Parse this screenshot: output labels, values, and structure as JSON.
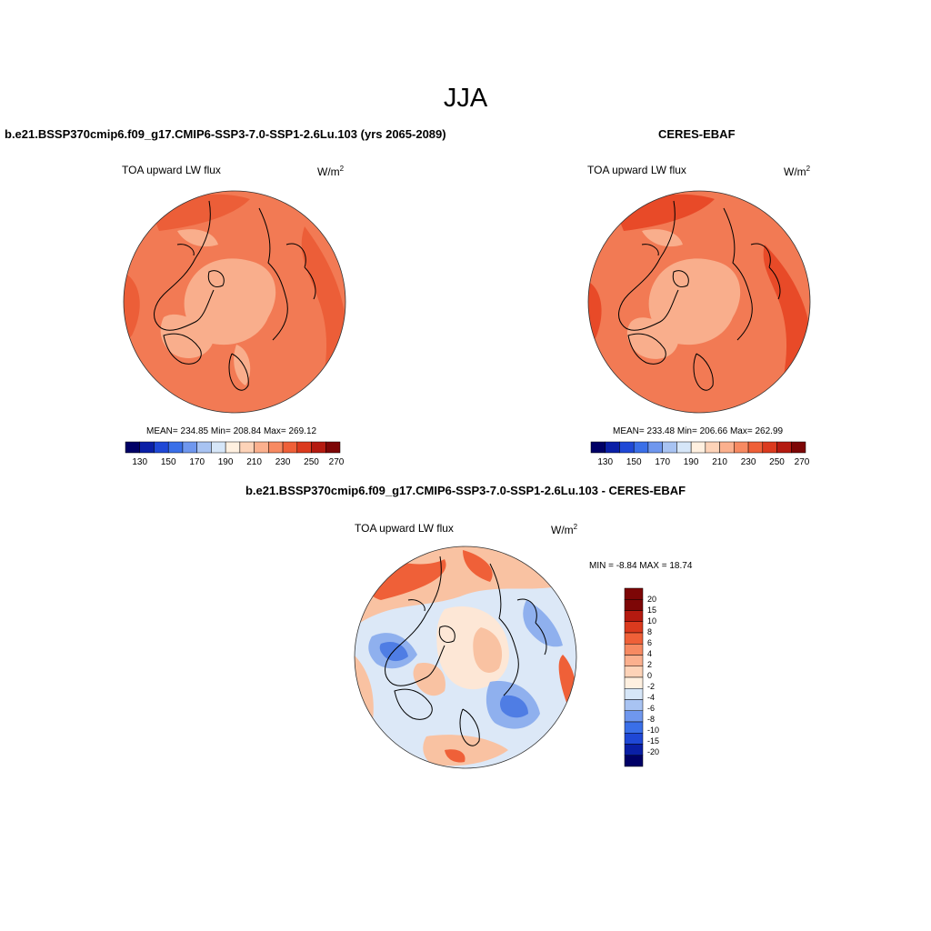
{
  "title": "JJA",
  "panels": [
    {
      "id": "model",
      "case_title": "b.e21.BSSP370cmip6.f09_g17.CMIP6-SSP3-7.0-SSP1-2.6Lu.103 (yrs 2065-2089)",
      "left_label": "TOA upward LW flux",
      "units": "W/m",
      "units_sup": "2",
      "stats": "MEAN= 234.85  Min= 208.84  Max= 269.12"
    },
    {
      "id": "obs",
      "case_title": "CERES-EBAF",
      "left_label": "TOA upward LW flux",
      "units": "W/m",
      "units_sup": "2",
      "stats": "MEAN= 233.48  Min= 206.66  Max= 262.99"
    }
  ],
  "diff_panel": {
    "case_title": "b.e21.BSSP370cmip6.f09_g17.CMIP6-SSP3-7.0-SSP1-2.6Lu.103 - CERES-EBAF",
    "left_label": "TOA upward LW flux",
    "units": "W/m",
    "units_sup": "2",
    "minmax": "MIN =  -8.84 MAX =  18.74"
  },
  "colorbar_abs": {
    "colors": [
      "#000066",
      "#0a1fa6",
      "#1f48d6",
      "#3a6fe8",
      "#6f97ee",
      "#a8c3f2",
      "#d6e6f8",
      "#fff0e0",
      "#fdd3b8",
      "#fbb08e",
      "#f78a62",
      "#ef6038",
      "#db3a1e",
      "#b41a10",
      "#7d0606"
    ],
    "tick_labels": [
      "130",
      "150",
      "170",
      "190",
      "210",
      "230",
      "250",
      "270"
    ]
  },
  "colorbar_diff": {
    "colors": [
      "#000066",
      "#0a1fa6",
      "#1f48d6",
      "#3a6fe8",
      "#6f97ee",
      "#a8c3f2",
      "#d6e6f8",
      "#fff0e0",
      "#fdd3b8",
      "#fbb08e",
      "#f78a62",
      "#ef6038",
      "#db3a1e",
      "#b41a10",
      "#7d0606"
    ],
    "tick_labels": [
      "20",
      "15",
      "10",
      "8",
      "6",
      "4",
      "2",
      "0",
      "-2",
      "-4",
      "-6",
      "-8",
      "-10",
      "-15",
      "-20"
    ]
  },
  "map_colors": {
    "model_base": "#f27a54",
    "model_pole": "#f9ae8c",
    "model_warm": "#ec5e38",
    "obs_base": "#f27a54",
    "obs_pole": "#f9ae8c",
    "obs_warm": "#e84a28",
    "diff_base": "#dce8f7",
    "diff_blue": "#8fb0ee",
    "diff_deep": "#4f7de4",
    "diff_pale": "#fde7d6",
    "diff_pink": "#f9c2a2",
    "diff_red": "#ef6038"
  }
}
